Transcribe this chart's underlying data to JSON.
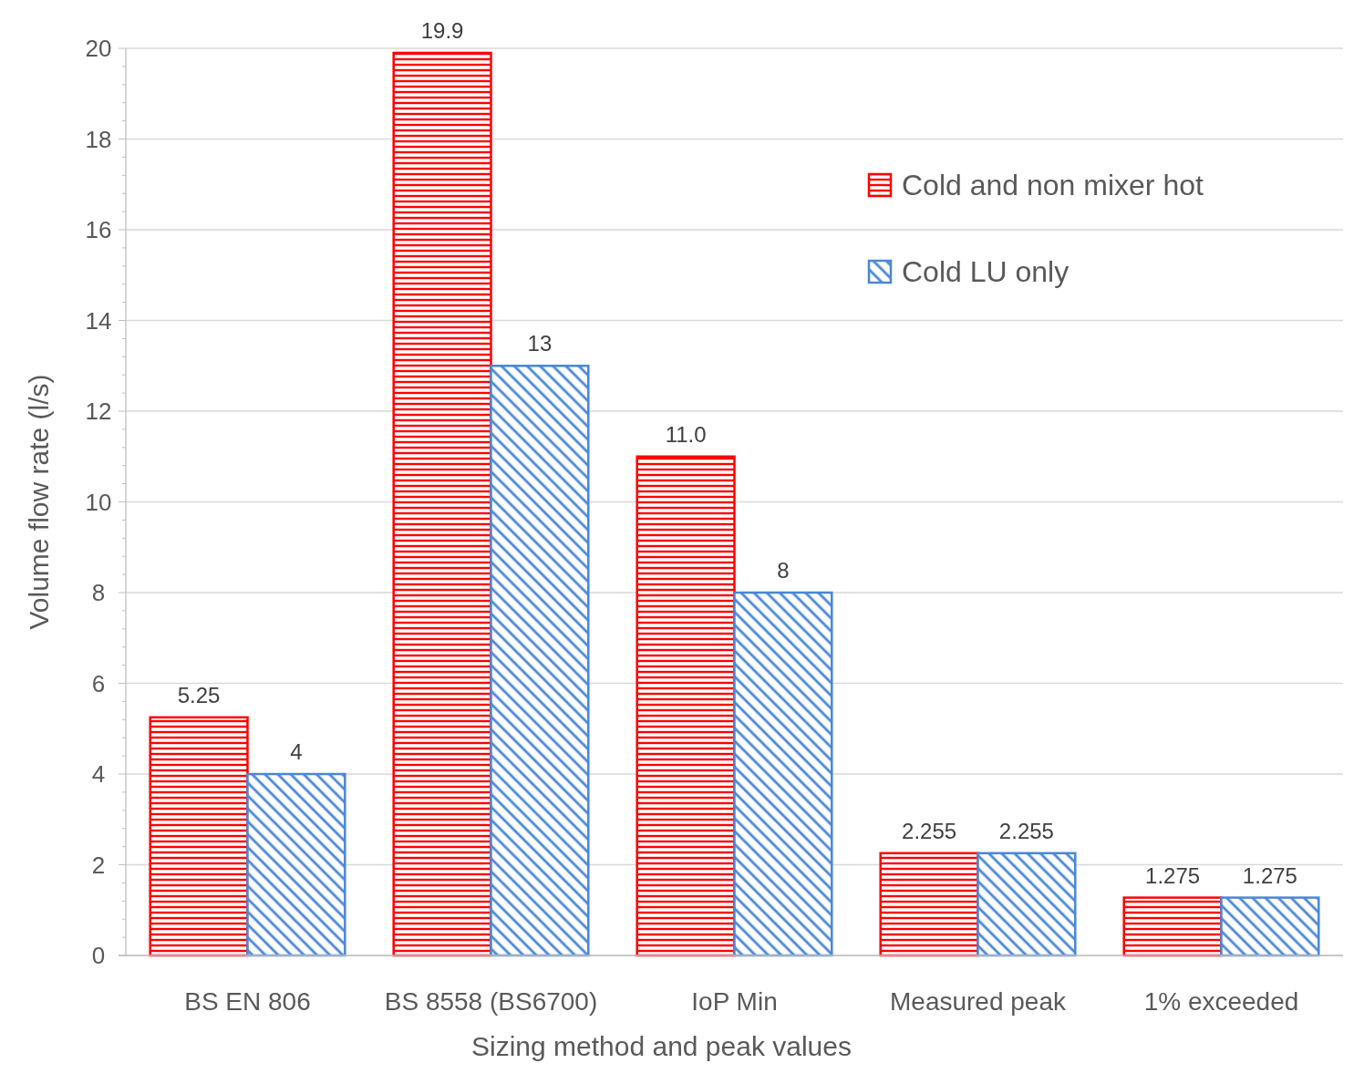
{
  "chart_data": {
    "type": "bar",
    "xlabel": "Sizing method and peak values",
    "ylabel": "Volume flow rate (l/s)",
    "categories": [
      "BS EN 806",
      "BS 8558 (BS6700)",
      "IoP Min",
      "Measured peak",
      "1% exceeded"
    ],
    "series": [
      {
        "name": "Cold and non mixer hot",
        "color": "#ff0000",
        "values": [
          5.25,
          19.9,
          11.0,
          2.255,
          1.275
        ],
        "value_labels": [
          "5.25",
          "19.9",
          "11.0",
          "2.255",
          "1.275"
        ]
      },
      {
        "name": "Cold LU only",
        "color": "#4a86d8",
        "values": [
          4,
          13,
          8,
          2.255,
          1.275
        ],
        "value_labels": [
          "4",
          "13",
          "8",
          "2.255",
          "1.275"
        ]
      }
    ],
    "ylim": [
      0,
      20
    ],
    "yticks": [
      0,
      2,
      4,
      6,
      8,
      10,
      12,
      14,
      16,
      18,
      20
    ],
    "grid": "y",
    "legend": "top right"
  }
}
